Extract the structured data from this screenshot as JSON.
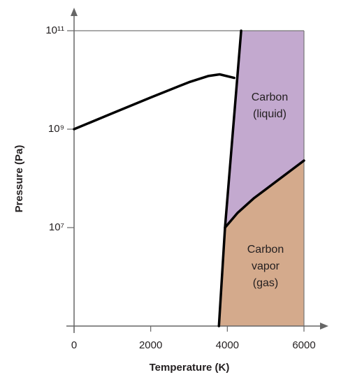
{
  "chart_data": {
    "type": "line",
    "x_label": "Temperature (K)",
    "y_label": "Pressure (Pa)",
    "xlim": [
      0,
      6000
    ],
    "xticks": [
      0,
      2000,
      4000,
      6000
    ],
    "ylim": [
      100000,
      100000000000
    ],
    "log_y": true,
    "yticks": [
      {
        "value": 10000000,
        "label": "10⁷"
      },
      {
        "value": 1000000000,
        "label": "10⁹"
      },
      {
        "value": 100000000000,
        "label": "10¹¹"
      }
    ],
    "series": [
      {
        "color": "#000000",
        "x": [
          0,
          1000,
          2000,
          3000,
          3500,
          3800,
          4180
        ],
        "values": [
          1000000000,
          2100000000,
          4400000000,
          9000000000,
          12000000000,
          13000000000,
          11000000000
        ]
      },
      {
        "color": "#000000",
        "x": [
          3780,
          3940,
          4360
        ],
        "values": [
          100000,
          10000000,
          100000000000
        ]
      },
      {
        "color": "#000000",
        "x": [
          3940,
          4270,
          4700,
          5180,
          6000
        ],
        "values": [
          10000000,
          20000000,
          40000000,
          76000000,
          230000000
        ]
      }
    ],
    "region_colors": [
      "#c3a9cf",
      "#d4aa8c"
    ],
    "annotations": [
      [
        "Carbon",
        "(liquid)"
      ],
      [
        "Carbon",
        "vapor",
        "(gas)"
      ]
    ]
  }
}
